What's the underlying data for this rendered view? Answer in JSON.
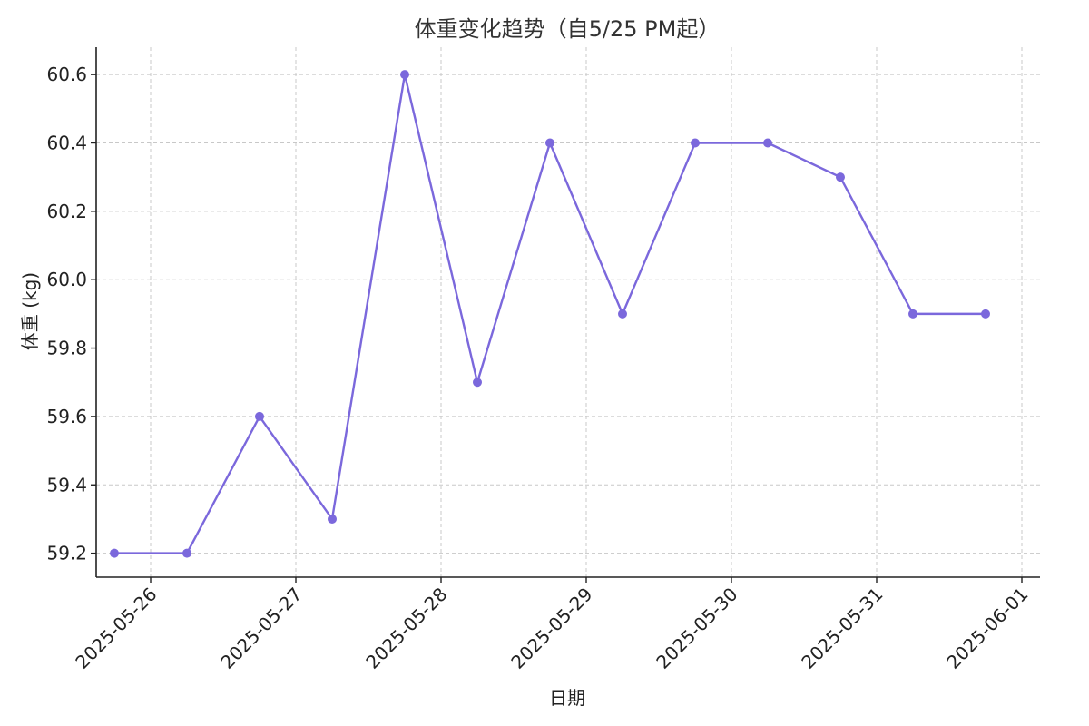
{
  "chart_data": {
    "type": "line",
    "title": "体重变化趋势（自5/25 PM起）",
    "xlabel": "日期",
    "ylabel": "体重 (kg)",
    "x": [
      "2025-05-25 18:00",
      "2025-05-26 06:00",
      "2025-05-26 18:00",
      "2025-05-27 06:00",
      "2025-05-27 18:00",
      "2025-05-28 06:00",
      "2025-05-28 18:00",
      "2025-05-29 06:00",
      "2025-05-29 18:00",
      "2025-05-30 06:00",
      "2025-05-30 18:00",
      "2025-05-31 06:00",
      "2025-05-31 18:00"
    ],
    "series": [
      {
        "name": "",
        "color": "#7b68dc",
        "values": [
          59.2,
          59.2,
          59.6,
          59.3,
          60.6,
          59.7,
          60.4,
          59.9,
          60.4,
          60.4,
          60.3,
          59.9,
          59.9
        ]
      }
    ],
    "xticks": [
      "2025-05-26",
      "2025-05-27",
      "2025-05-28",
      "2025-05-29",
      "2025-05-30",
      "2025-05-31",
      "2025-06-01"
    ],
    "yticks": [
      "59.2",
      "59.4",
      "59.6",
      "59.8",
      "60.0",
      "60.2",
      "60.4",
      "60.6"
    ],
    "ylim": [
      59.13,
      60.68
    ],
    "xlim": [
      "2025-05-25 15:00",
      "2025-06-01 03:00"
    ],
    "grid": true
  }
}
